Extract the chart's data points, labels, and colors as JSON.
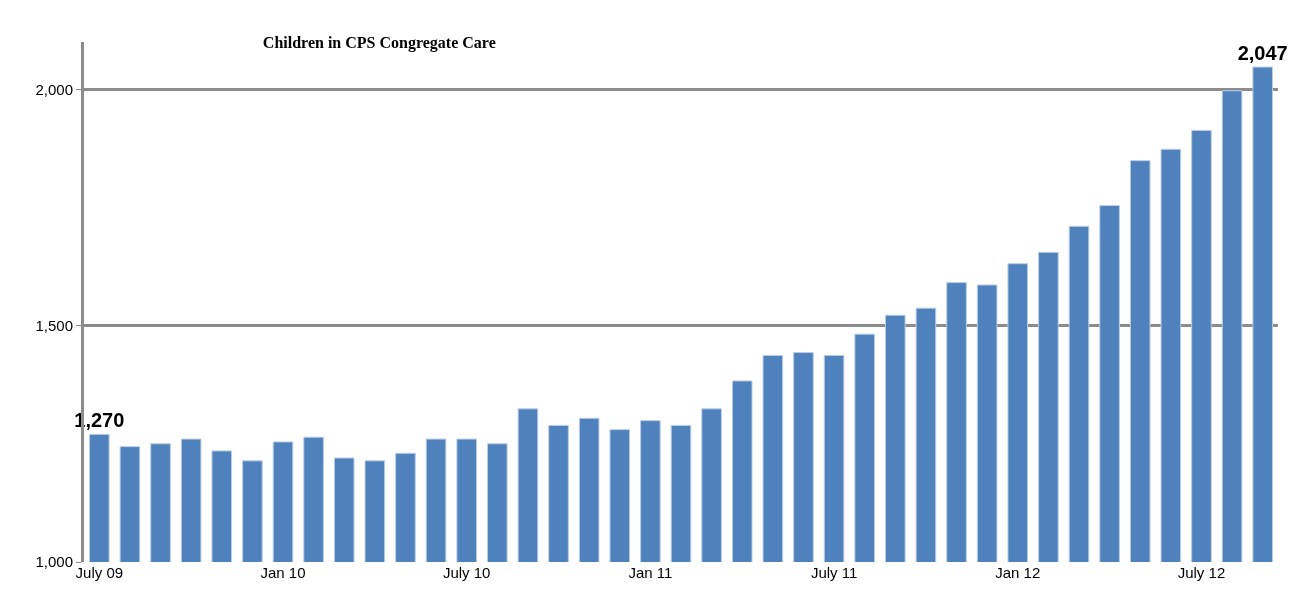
{
  "chart_data": {
    "type": "bar",
    "title": "Children in CPS Congregate Care",
    "categories": [
      "July 09",
      null,
      null,
      null,
      null,
      null,
      "Jan 10",
      null,
      null,
      null,
      null,
      null,
      "July 10",
      null,
      null,
      null,
      null,
      null,
      "Jan 11",
      null,
      null,
      null,
      null,
      null,
      "July 11",
      null,
      null,
      null,
      null,
      null,
      "Jan 12",
      null,
      null,
      null,
      null,
      null,
      "July 12",
      null,
      null
    ],
    "values": [
      1270,
      1244,
      1250,
      1260,
      1235,
      1214,
      1254,
      1264,
      1220,
      1214,
      1230,
      1260,
      1260,
      1250,
      1324,
      1289,
      1304,
      1280,
      1299,
      1289,
      1324,
      1383,
      1437,
      1443,
      1437,
      1482,
      1522,
      1537,
      1591,
      1586,
      1631,
      1655,
      1710,
      1754,
      1849,
      1873,
      1913,
      1997,
      2047
    ],
    "value_labels": [
      "1,270",
      null,
      null,
      null,
      null,
      null,
      null,
      null,
      null,
      null,
      null,
      null,
      null,
      null,
      null,
      null,
      null,
      null,
      null,
      null,
      null,
      null,
      null,
      null,
      null,
      null,
      null,
      null,
      null,
      null,
      null,
      null,
      null,
      null,
      null,
      null,
      null,
      null,
      "2,047"
    ],
    "color": "#4f81bd",
    "ylim": [
      1000,
      2100
    ],
    "yticks": [
      {
        "value": 1000,
        "label": "1,000"
      },
      {
        "value": 1500,
        "label": "1,500"
      },
      {
        "value": 2000,
        "label": "2,000"
      }
    ],
    "grid": "y"
  }
}
